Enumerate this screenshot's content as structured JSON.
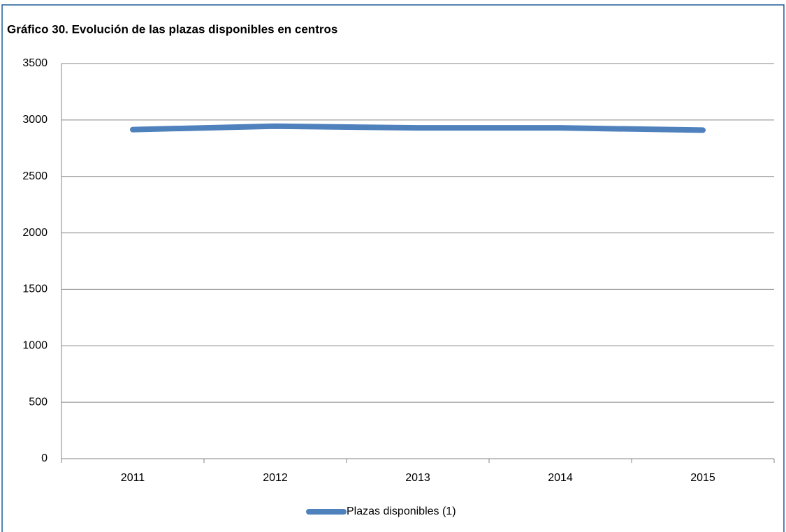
{
  "chart_data": {
    "type": "line",
    "title": "Gráfico  30. Evolución de las plazas disponibles en centros",
    "categories": [
      "2011",
      "2012",
      "2013",
      "2014",
      "2015"
    ],
    "series": [
      {
        "name": "Plazas disponibles (1)",
        "color": "#4f81bd",
        "values": [
          2915,
          2945,
          2930,
          2930,
          2910
        ]
      }
    ],
    "ylim": [
      0,
      3500
    ],
    "yticks": [
      0,
      500,
      1000,
      1500,
      2000,
      2500,
      3000,
      3500
    ],
    "grid": true,
    "legend": "bottom"
  }
}
